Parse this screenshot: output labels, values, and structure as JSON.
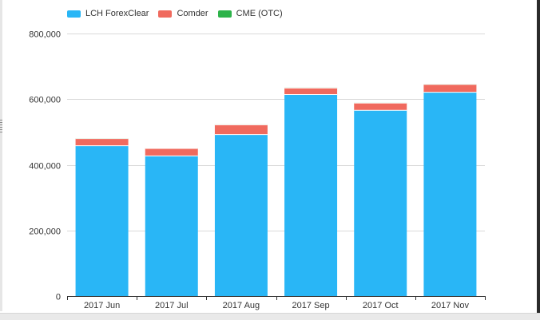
{
  "chart_data": {
    "type": "bar",
    "stacked": true,
    "categories": [
      "2017 Jun",
      "2017 Jul",
      "2017 Aug",
      "2017 Sep",
      "2017 Oct",
      "2017 Nov"
    ],
    "series": [
      {
        "name": "LCH ForexClear",
        "color": "#29b6f6",
        "values": [
          458000,
          427000,
          492000,
          614000,
          566000,
          621000
        ]
      },
      {
        "name": "Comder",
        "color": "#f06a5e",
        "values": [
          22000,
          23000,
          30000,
          20000,
          22000,
          24000
        ]
      },
      {
        "name": "CME (OTC)",
        "color": "#2db34a",
        "values": [
          1000,
          1000,
          1000,
          1000,
          1000,
          1000
        ]
      }
    ],
    "ylim": [
      0,
      800000
    ],
    "yticks": [
      0,
      200000,
      400000,
      600000,
      800000
    ],
    "ytick_labels": [
      "0",
      "200,000",
      "400,000",
      "600,000",
      "800,000"
    ],
    "grid": true,
    "legend_position": "top-left"
  }
}
